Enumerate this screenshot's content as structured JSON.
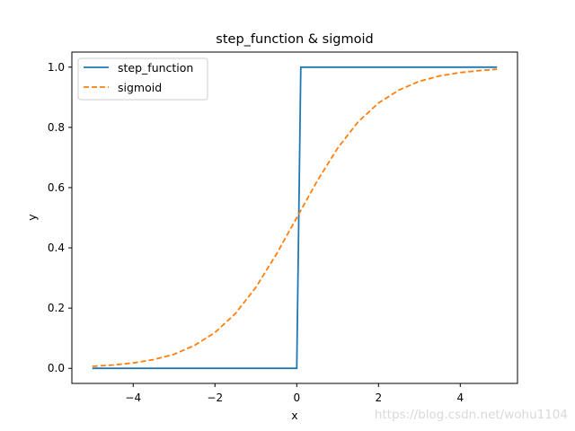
{
  "chart_data": {
    "type": "line",
    "title": "step_function & sigmoid",
    "xlabel": "x",
    "ylabel": "y",
    "xlim": [
      -5.5,
      5.4
    ],
    "ylim": [
      -0.05,
      1.05
    ],
    "x_ticks": [
      -4,
      -2,
      0,
      2,
      4
    ],
    "x_tick_labels": [
      "−4",
      "−2",
      "0",
      "2",
      "4"
    ],
    "y_ticks": [
      0.0,
      0.2,
      0.4,
      0.6,
      0.8,
      1.0
    ],
    "y_tick_labels": [
      "0.0",
      "0.2",
      "0.4",
      "0.6",
      "0.8",
      "1.0"
    ],
    "grid": false,
    "legend_position": "top-left",
    "series": [
      {
        "name": "step_function",
        "color": "#1f77b4",
        "style": "solid",
        "x": [
          -5.0,
          0.0,
          0.1,
          4.9
        ],
        "y": [
          0,
          0,
          1,
          1
        ]
      },
      {
        "name": "sigmoid",
        "color": "#ff7f0e",
        "style": "dashed",
        "x": [
          -5.0,
          -4.5,
          -4.0,
          -3.5,
          -3.0,
          -2.5,
          -2.0,
          -1.5,
          -1.0,
          -0.5,
          0.0,
          0.5,
          1.0,
          1.5,
          2.0,
          2.5,
          3.0,
          3.5,
          4.0,
          4.5,
          4.9
        ],
        "y": [
          0.0067,
          0.011,
          0.018,
          0.029,
          0.047,
          0.076,
          0.119,
          0.182,
          0.269,
          0.378,
          0.5,
          0.622,
          0.731,
          0.818,
          0.881,
          0.924,
          0.953,
          0.971,
          0.982,
          0.989,
          0.993
        ]
      }
    ]
  },
  "watermark": "https://blog.csdn.net/wohu1104"
}
